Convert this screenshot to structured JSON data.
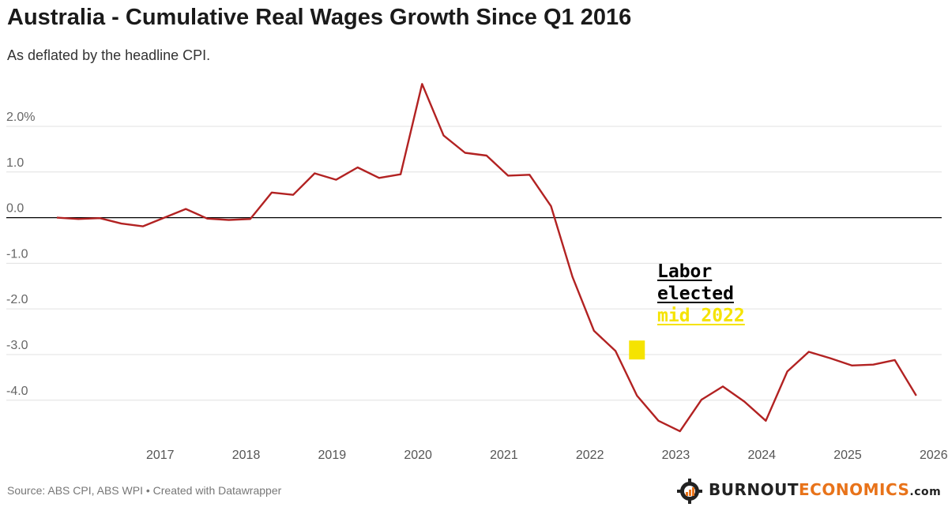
{
  "title": "Australia - Cumulative Real Wages Growth Since Q1 2016",
  "subtitle": "As deflated by the headline CPI.",
  "source": "Source: ABS CPI, ABS WPI • Created with Datawrapper",
  "annotation": {
    "line1": "Labor",
    "line2": "elected",
    "line3": "mid 2022",
    "marker_x": 2022.75,
    "marker_y": -2.9
  },
  "brand": {
    "part1": "BURNOUT",
    "part2": "ECONOMICS",
    "part3": ".com"
  },
  "colors": {
    "line": "#b22222",
    "zero_line": "#000000",
    "grid": "#e0e0e0",
    "highlight": "#f5e300",
    "brand_accent": "#e8731a"
  },
  "chart_data": {
    "type": "line",
    "title": "Australia - Cumulative Real Wages Growth Since Q1 2016",
    "subtitle": "As deflated by the headline CPI.",
    "xlabel": "",
    "ylabel": "",
    "xlim": [
      2016.0,
      2026.25
    ],
    "ylim": [
      -4.8,
      2.9
    ],
    "grid": "horizontal",
    "legend": "none",
    "y_ticks": [
      {
        "value": 2,
        "label": "2.0%"
      },
      {
        "value": 1,
        "label": "1.0"
      },
      {
        "value": 0,
        "label": "0.0"
      },
      {
        "value": -1,
        "label": "-1.0"
      },
      {
        "value": -2,
        "label": "-2.0"
      },
      {
        "value": -3,
        "label": "-3.0"
      },
      {
        "value": -4,
        "label": "-4.0"
      }
    ],
    "x_ticks": [
      {
        "value": 2017,
        "label": "2017"
      },
      {
        "value": 2018,
        "label": "2018"
      },
      {
        "value": 2019,
        "label": "2019"
      },
      {
        "value": 2020,
        "label": "2020"
      },
      {
        "value": 2021,
        "label": "2021"
      },
      {
        "value": 2022,
        "label": "2022"
      },
      {
        "value": 2023,
        "label": "2023"
      },
      {
        "value": 2024,
        "label": "2024"
      },
      {
        "value": 2025,
        "label": "2025"
      },
      {
        "value": 2026,
        "label": "2026"
      }
    ],
    "series": [
      {
        "name": "",
        "x": [
          2016.0,
          2016.25,
          2016.5,
          2016.75,
          2017.0,
          2017.25,
          2017.5,
          2017.75,
          2018.0,
          2018.25,
          2018.5,
          2018.75,
          2019.0,
          2019.25,
          2019.5,
          2019.75,
          2020.0,
          2020.25,
          2020.5,
          2020.75,
          2021.0,
          2021.25,
          2021.5,
          2021.75,
          2022.0,
          2022.25,
          2022.5,
          2022.75,
          2023.0,
          2023.25,
          2023.5,
          2023.75,
          2024.0,
          2024.25,
          2024.5,
          2024.75,
          2025.0,
          2025.25,
          2025.5,
          2025.75,
          2026.0,
          2026.25
        ],
        "values": [
          0.0,
          -0.03,
          -0.01,
          -0.13,
          -0.19,
          0.0,
          0.19,
          -0.02,
          -0.05,
          -0.03,
          0.55,
          0.5,
          0.97,
          0.83,
          1.1,
          0.87,
          0.95,
          2.93,
          1.8,
          1.42,
          1.36,
          0.92,
          0.94,
          0.25,
          -1.3,
          -2.48,
          -2.92,
          -3.9,
          -4.45,
          -4.68,
          -3.99,
          -3.7,
          -4.03,
          -4.45,
          -3.37,
          -2.94,
          -3.08,
          -3.24,
          -3.22,
          -3.12,
          -3.9,
          null
        ]
      }
    ]
  }
}
